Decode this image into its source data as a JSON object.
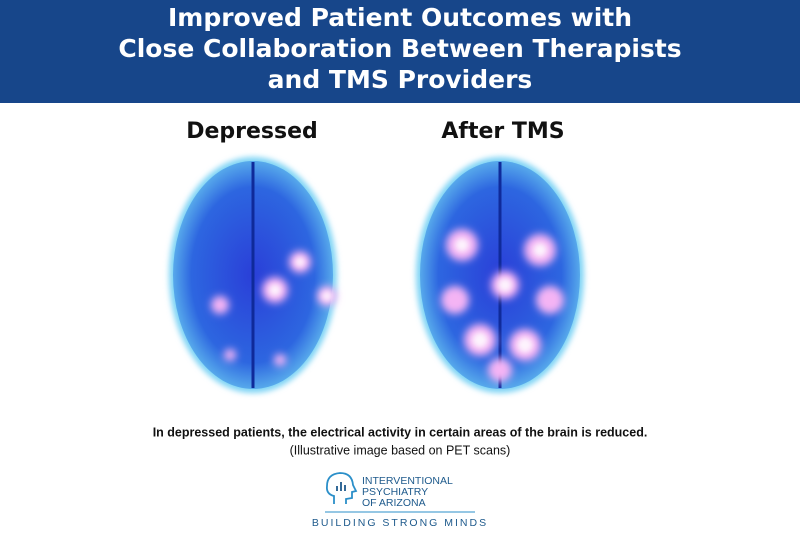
{
  "header": {
    "title": [
      "Improved Patient Outcomes with",
      "Close Collaboration Between Therapists",
      "and TMS Providers"
    ]
  },
  "panels": [
    {
      "label": "Depressed"
    },
    {
      "label": "After TMS"
    }
  ],
  "caption": [
    "In depressed patients, the electrical activity in certain areas of the brain is reduced.",
    "(Illustrative image based on PET scans)"
  ],
  "logo": {
    "name": [
      "INTERVENTIONAL",
      "PSYCHIATRY",
      "OF ARIZONA"
    ],
    "tagline": "BUILDING STRONG MINDS"
  }
}
